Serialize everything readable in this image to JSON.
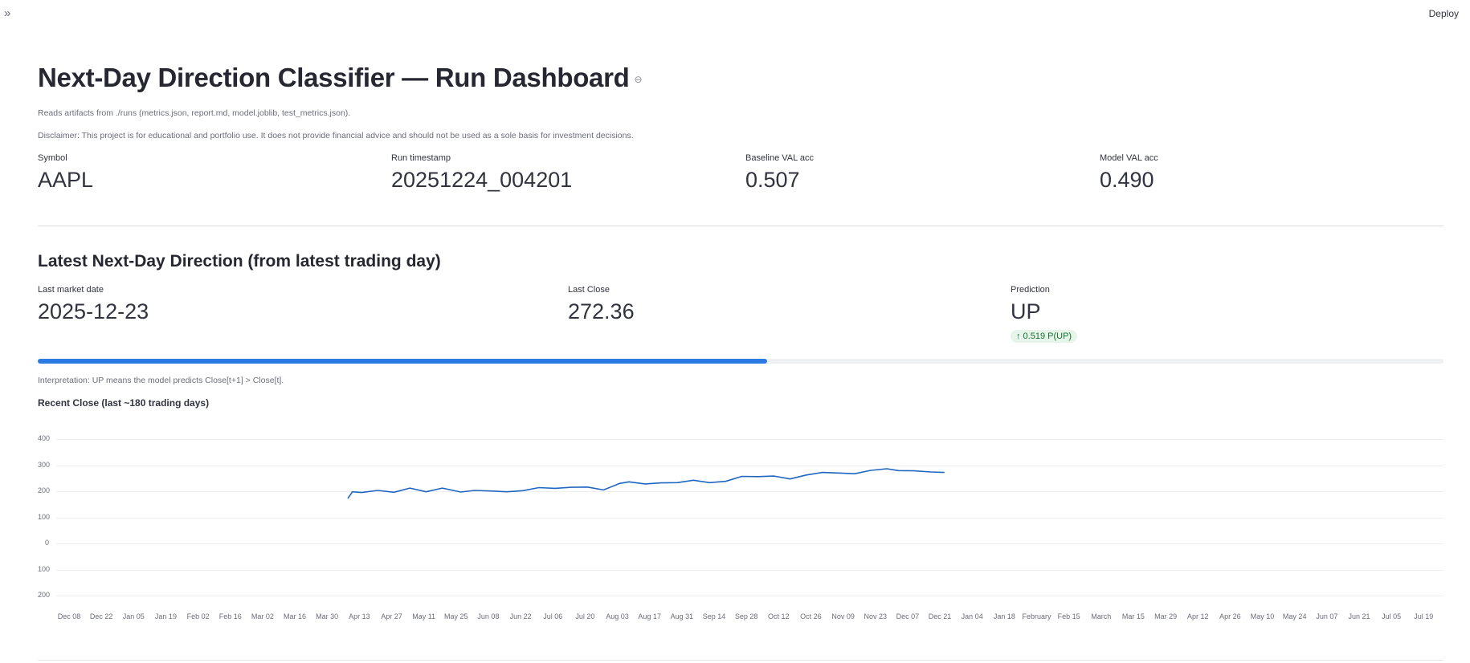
{
  "header": {
    "sidebar_toggle": "»",
    "deploy_label": "Deploy"
  },
  "page": {
    "title": "Next-Day Direction Classifier — Run Dashboard",
    "link_icon": "link-icon",
    "caption_artifacts": "Reads artifacts from ./runs (metrics.json, report.md, model.joblib, test_metrics.json).",
    "caption_disclaimer": "Disclaimer: This project is for educational and portfolio use. It does not provide financial advice and should not be used as a sole basis for investment decisions."
  },
  "run_metrics": [
    {
      "label": "Symbol",
      "value": "AAPL"
    },
    {
      "label": "Run timestamp",
      "value": "20251224_004201"
    },
    {
      "label": "Baseline VAL acc",
      "value": "0.507"
    },
    {
      "label": "Model VAL acc",
      "value": "0.490"
    }
  ],
  "latest": {
    "heading": "Latest Next-Day Direction (from latest trading day)",
    "metrics": [
      {
        "label": "Last market date",
        "value": "2025-12-23"
      },
      {
        "label": "Last Close",
        "value": "272.36"
      },
      {
        "label": "Prediction",
        "value": "UP",
        "delta": "↑ 0.519 P(UP)",
        "delta_color": "#177233"
      }
    ],
    "progress": 0.519,
    "progress_color": "#2c7be5",
    "interpretation": "Interpretation: UP means the model predicts Close[t+1] > Close[t]."
  },
  "chart_data": {
    "type": "line",
    "title": "Recent Close (last ~180 trading days)",
    "xlabel": "",
    "ylabel": "",
    "ylim": [
      -200,
      400
    ],
    "y_tick_labels": [
      "400",
      "300",
      "200",
      "100",
      "0",
      "100",
      "200"
    ],
    "x_tick_labels": [
      "Dec 08",
      "Dec 22",
      "Jan 05",
      "Jan 19",
      "Feb 02",
      "Feb 16",
      "Mar 02",
      "Mar 16",
      "Mar 30",
      "Apr 13",
      "Apr 27",
      "May 11",
      "May 25",
      "Jun 08",
      "Jun 22",
      "Jul 06",
      "Jul 20",
      "Aug 03",
      "Aug 17",
      "Aug 31",
      "Sep 14",
      "Sep 28",
      "Oct 12",
      "Oct 26",
      "Nov 09",
      "Nov 23",
      "Dec 07",
      "Dec 21",
      "Jan 04",
      "Jan 18",
      "February",
      "Feb 15",
      "March",
      "Mar 15",
      "Mar 29",
      "Apr 12",
      "Apr 26",
      "May 10",
      "May 24",
      "Jun 07",
      "Jun 21",
      "Jul 05",
      "Jul 19"
    ],
    "grid": true,
    "line_color": "#1f66c1",
    "series": [
      {
        "name": "Close",
        "x": [
          "2025-04-08",
          "2025-04-10",
          "2025-04-14",
          "2025-04-21",
          "2025-04-28",
          "2025-05-05",
          "2025-05-12",
          "2025-05-19",
          "2025-05-27",
          "2025-06-02",
          "2025-06-09",
          "2025-06-16",
          "2025-06-23",
          "2025-06-30",
          "2025-07-07",
          "2025-07-14",
          "2025-07-21",
          "2025-07-28",
          "2025-08-04",
          "2025-08-08",
          "2025-08-15",
          "2025-08-22",
          "2025-08-29",
          "2025-09-05",
          "2025-09-12",
          "2025-09-19",
          "2025-09-26",
          "2025-10-03",
          "2025-10-10",
          "2025-10-17",
          "2025-10-24",
          "2025-10-31",
          "2025-11-07",
          "2025-11-14",
          "2025-11-21",
          "2025-11-28",
          "2025-12-03",
          "2025-12-10",
          "2025-12-17",
          "2025-12-23"
        ],
        "values": [
          172,
          198,
          195,
          203,
          196,
          212,
          198,
          212,
          197,
          203,
          201,
          198,
          202,
          214,
          211,
          215,
          216,
          205,
          230,
          236,
          228,
          232,
          233,
          242,
          233,
          238,
          257,
          256,
          258,
          247,
          262,
          272,
          270,
          267,
          280,
          286,
          279,
          278,
          274,
          272
        ]
      }
    ]
  }
}
